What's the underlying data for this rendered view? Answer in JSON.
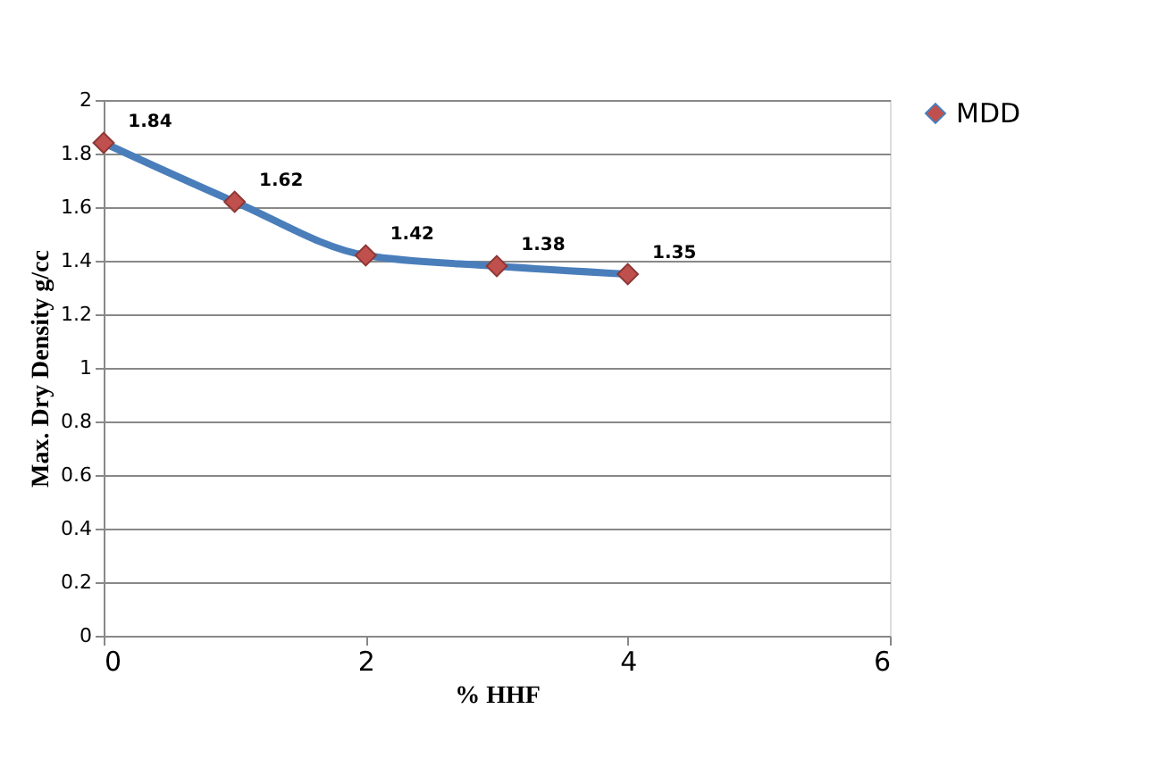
{
  "chart_data": {
    "type": "line",
    "xlabel": "% HHF",
    "ylabel": "Max. Dry Density  g/cc",
    "x": [
      0,
      1,
      2,
      3,
      4
    ],
    "series": [
      {
        "name": "MDD",
        "color": "#4a7ebb",
        "colors": [
          "#c0504d",
          "#c0504d",
          "#c0504d",
          "#c0504d",
          "#c0504d"
        ],
        "values": [
          1.84,
          1.62,
          1.42,
          1.38,
          1.35
        ]
      }
    ],
    "xlim": [
      0,
      6
    ],
    "xticks": [
      0,
      2,
      4,
      6
    ],
    "ylim": [
      0,
      2
    ],
    "yticks": [
      0,
      0.2,
      0.4,
      0.6,
      0.8,
      1,
      1.2,
      1.4,
      1.6,
      1.8,
      2
    ],
    "grid": "y",
    "legend": "right",
    "marker": "diamond",
    "line_style": "solid",
    "data_labels": true
  }
}
